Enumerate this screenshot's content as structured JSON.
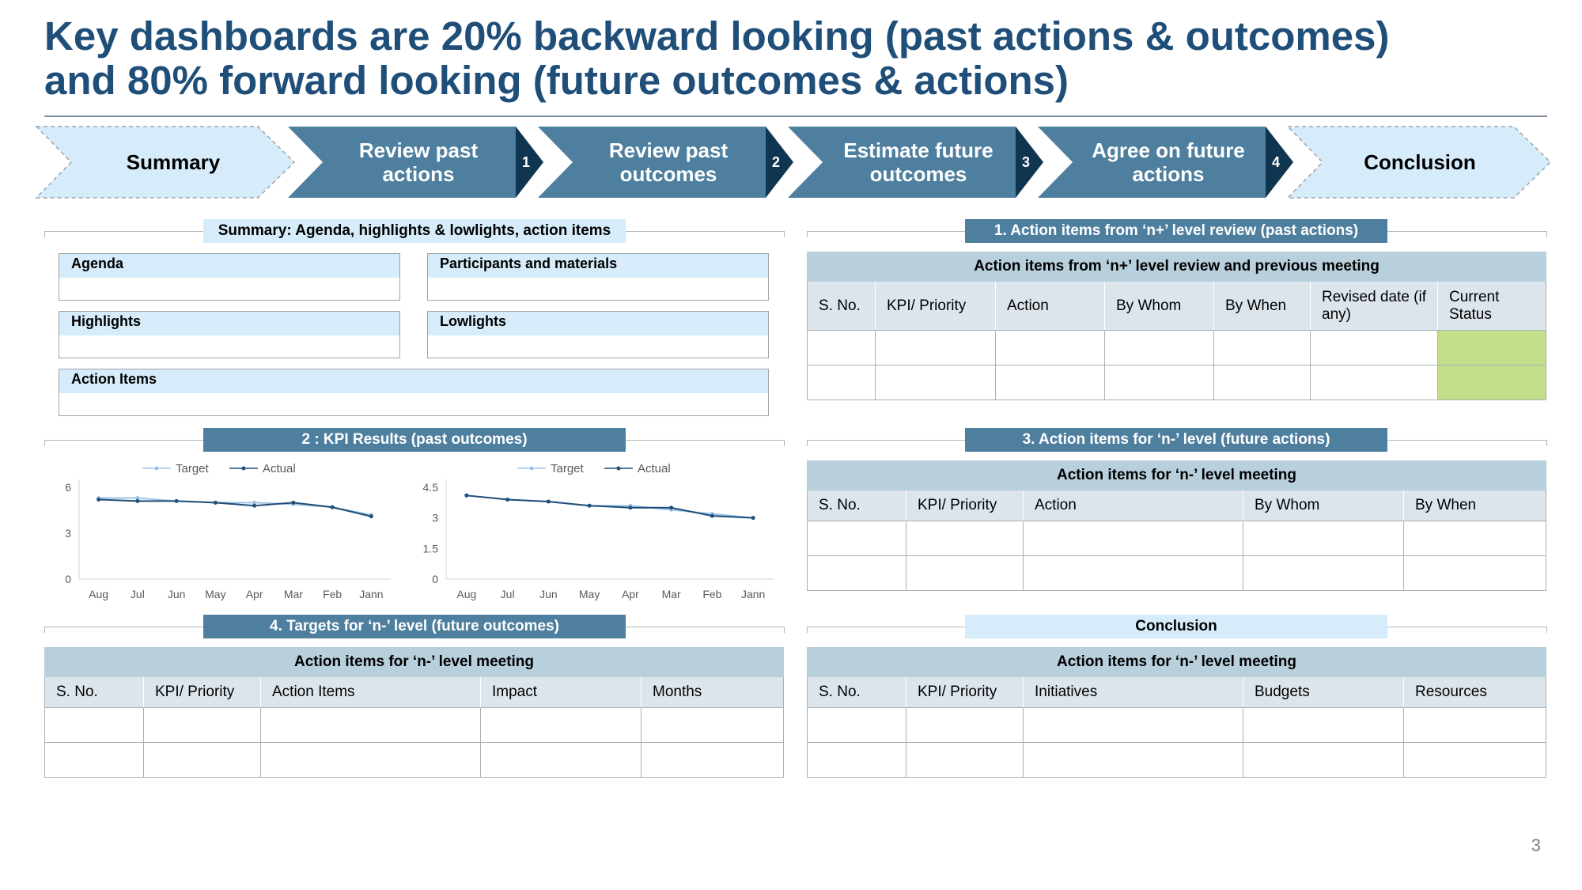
{
  "title_line1": "Key dashboards are 20% backward looking (past actions & outcomes)",
  "title_line2": "and 80% forward looking (future outcomes & actions)",
  "steps": [
    {
      "label_line1": "Summary",
      "label_line2": "",
      "number": ""
    },
    {
      "label_line1": "Review past",
      "label_line2": "actions",
      "number": "1"
    },
    {
      "label_line1": "Review past",
      "label_line2": "outcomes",
      "number": "2"
    },
    {
      "label_line1": "Estimate future",
      "label_line2": "outcomes",
      "number": "3"
    },
    {
      "label_line1": "Agree on future",
      "label_line2": "actions",
      "number": "4"
    },
    {
      "label_line1": "Conclusion",
      "label_line2": "",
      "number": ""
    }
  ],
  "colors": {
    "title": "#1f4e79",
    "step_dark": "#4e7f9e",
    "step_light": "#d6ecfa",
    "arrow_dark": "#0f3550",
    "status_green": "#c4df8c"
  },
  "summary": {
    "title": "Summary: Agenda, highlights & lowlights, action items",
    "boxes": {
      "agenda": "Agenda",
      "participants": "Participants and materials",
      "highlights": "Highlights",
      "lowlights": "Lowlights",
      "action_items": "Action Items"
    }
  },
  "past_actions": {
    "title": "1. Action items from ‘n+’ level review (past actions)",
    "caption": "Action items from ‘n+’ level review and previous meeting",
    "headers": [
      "S. No.",
      "KPI/ Priority",
      "Action",
      "By Whom",
      "By When",
      "Revised date (if any)",
      "Current Status"
    ]
  },
  "kpi": {
    "title": "2 : KPI Results (past outcomes)"
  },
  "future_actions": {
    "title": "3. Action items for ‘n-’ level (future actions)",
    "caption": "Action items for ‘n-’ level meeting",
    "headers": [
      "S. No.",
      "KPI/ Priority",
      "Action",
      "By Whom",
      "By When"
    ]
  },
  "targets": {
    "title": "4. Targets for ‘n-’ level (future outcomes)",
    "caption": "Action items for ‘n-’ level meeting",
    "headers": [
      "S. No.",
      "KPI/ Priority",
      "Action Items",
      "Impact",
      "Months"
    ]
  },
  "conclusion": {
    "title": "Conclusion",
    "caption": "Action items for ‘n-’ level meeting",
    "headers": [
      "S. No.",
      "KPI/ Priority",
      "Initiatives",
      "Budgets",
      "Resources"
    ]
  },
  "chart_data": [
    {
      "type": "line",
      "categories": [
        "Aug",
        "Jul",
        "Jun",
        "May",
        "Apr",
        "Mar",
        "Feb",
        "Jann"
      ],
      "series": [
        {
          "name": "Target",
          "values": [
            5.3,
            5.3,
            5.1,
            5.0,
            5.0,
            4.9,
            4.7,
            4.2
          ],
          "color": "#9dc3e6"
        },
        {
          "name": "Actual",
          "values": [
            5.2,
            5.1,
            5.1,
            5.0,
            4.8,
            5.0,
            4.7,
            4.1
          ],
          "color": "#1f4e79"
        }
      ],
      "yticks": [
        "0",
        "3",
        "6"
      ],
      "ylim": [
        0,
        6
      ],
      "legend": "top"
    },
    {
      "type": "line",
      "categories": [
        "Aug",
        "Jul",
        "Jun",
        "May",
        "Apr",
        "Mar",
        "Feb",
        "Jann"
      ],
      "series": [
        {
          "name": "Target",
          "values": [
            4.1,
            3.9,
            3.8,
            3.6,
            3.6,
            3.4,
            3.2,
            3.0
          ],
          "color": "#9dc3e6"
        },
        {
          "name": "Actual",
          "values": [
            4.1,
            3.9,
            3.8,
            3.6,
            3.5,
            3.5,
            3.1,
            3.0
          ],
          "color": "#1f4e79"
        }
      ],
      "yticks": [
        "0",
        "1.5",
        "3",
        "4.5"
      ],
      "ylim": [
        0,
        4.5
      ],
      "legend": "top"
    }
  ],
  "page_number": "3"
}
